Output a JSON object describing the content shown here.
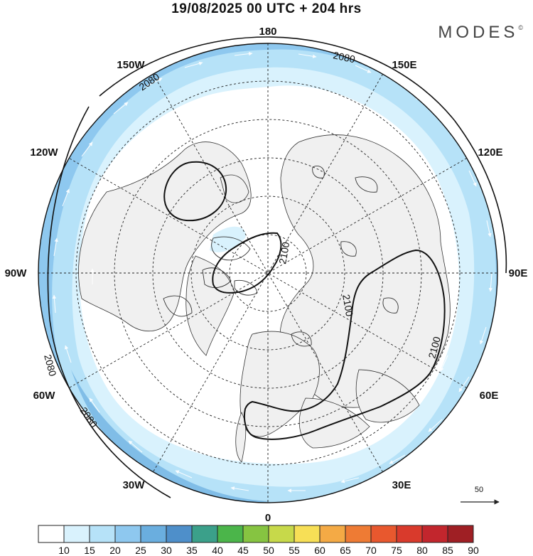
{
  "header": {
    "title": "19/08/2025  00 UTC  + 204 hrs"
  },
  "brand": {
    "name": "MODES",
    "mark": "©"
  },
  "longitude_labels": [
    "180",
    "150E",
    "120E",
    "90E",
    "60E",
    "30E",
    "0",
    "30W",
    "60W",
    "90W",
    "120W",
    "150W"
  ],
  "contours": {
    "labels": [
      "2080",
      "2080",
      "2080",
      "2080",
      "2100",
      "2100"
    ]
  },
  "wind_reference": {
    "value": "50"
  },
  "colorbar": {
    "labels": [
      "10",
      "15",
      "20",
      "25",
      "30",
      "35",
      "40",
      "45",
      "50",
      "55",
      "60",
      "65",
      "70",
      "75",
      "80",
      "85",
      "90"
    ],
    "colors": [
      "#ffffff",
      "#d9f2fd",
      "#b6e2f8",
      "#8ec8ef",
      "#6aaedf",
      "#4e8fca",
      "#3ba08a",
      "#4bb54a",
      "#86c441",
      "#c7d94a",
      "#f7df56",
      "#f4aa45",
      "#ee7b34",
      "#e8582e",
      "#d93a2c",
      "#c2262d",
      "#9f1f24"
    ]
  }
}
